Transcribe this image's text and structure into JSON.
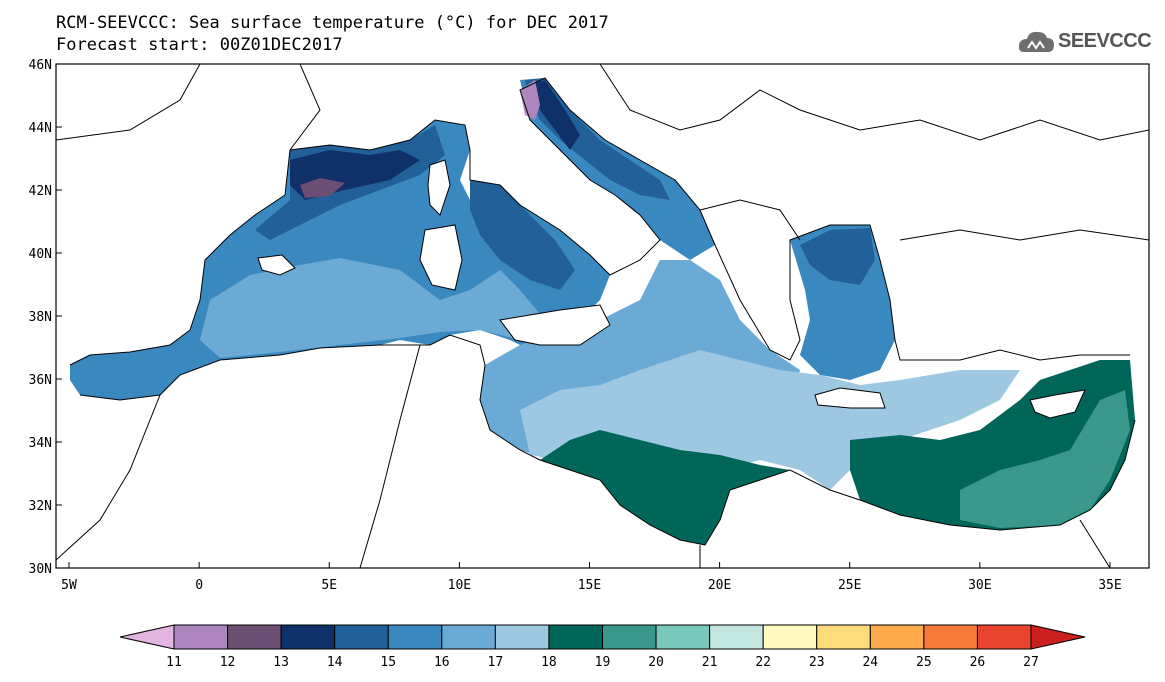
{
  "title": {
    "line1": "RCM-SEEVCCC: Sea surface temperature (°C) for DEC 2017",
    "line2": "Forecast start: 00Z01DEC2017"
  },
  "logo": {
    "text": "SEEVCCC",
    "icon": "cloud-logo-icon"
  },
  "map": {
    "lon_range": [
      -5.5,
      36.5
    ],
    "lat_range": [
      30,
      46
    ],
    "lat_labels": [
      "46N",
      "44N",
      "42N",
      "40N",
      "38N",
      "36N",
      "34N",
      "32N",
      "30N"
    ],
    "lat_values": [
      46,
      44,
      42,
      40,
      38,
      36,
      34,
      32,
      30
    ],
    "lon_labels": [
      "5W",
      "0",
      "5E",
      "10E",
      "15E",
      "20E",
      "25E",
      "30E",
      "35E"
    ],
    "lon_values": [
      -5,
      0,
      5,
      10,
      15,
      20,
      25,
      30,
      35
    ]
  },
  "colorbar": {
    "levels": [
      "11",
      "12",
      "13",
      "14",
      "15",
      "16",
      "17",
      "18",
      "19",
      "20",
      "21",
      "22",
      "23",
      "24",
      "25",
      "26",
      "27"
    ],
    "colors": [
      "#e2b5e3",
      "#ad86bd",
      "#6b4e72",
      "#0f3068",
      "#22609a",
      "#3a88c0",
      "#6aaad4",
      "#9ec8e2",
      "#00665a",
      "#3a978e",
      "#78c8bc",
      "#c3e6e1",
      "#fefac0",
      "#fedc7c",
      "#fcab4d",
      "#f67b3a",
      "#e8432c",
      "#cc1f1f"
    ]
  },
  "colors": {
    "land": "#ffffff",
    "coast": "#000000"
  }
}
